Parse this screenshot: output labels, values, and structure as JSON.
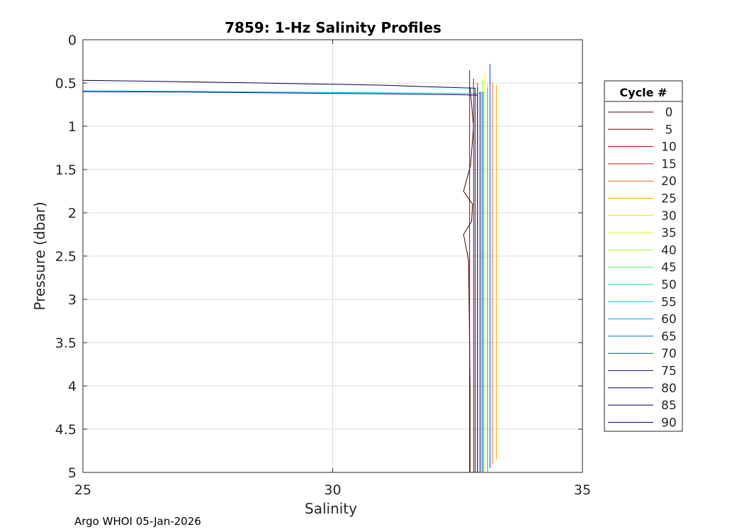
{
  "chart_data": {
    "type": "line",
    "title": "7859: 1-Hz Salinity Profiles",
    "xlabel": "Salinity",
    "ylabel": "Pressure (dbar)",
    "xlim": [
      25,
      35
    ],
    "ylim": [
      0,
      5
    ],
    "y_reversed": true,
    "grid": true,
    "x_ticks": [
      25,
      30,
      35
    ],
    "y_ticks": [
      0,
      0.5,
      1,
      1.5,
      2,
      2.5,
      3,
      3.5,
      4,
      4.5,
      5
    ],
    "legend_title": "Cycle #",
    "legend_position": "outside-right",
    "series": [
      {
        "name": "0",
        "color": "#4d0000",
        "x": [
          32.75,
          32.82,
          32.76,
          32.62,
          32.8,
          32.78,
          32.62,
          32.72,
          32.75,
          32.75
        ],
        "y": [
          0.55,
          1.0,
          1.45,
          1.75,
          1.9,
          2.1,
          2.25,
          2.55,
          4.0,
          5.0
        ]
      },
      {
        "name": "5",
        "color": "#800000",
        "x": [
          32.74,
          32.74,
          32.74
        ],
        "y": [
          0.35,
          2.0,
          5.0
        ]
      },
      {
        "name": "10",
        "color": "#b30000",
        "x": [
          32.82,
          32.82,
          32.82
        ],
        "y": [
          0.45,
          2.5,
          5.0
        ]
      },
      {
        "name": "15",
        "color": "#e61a00",
        "x": [
          32.9,
          32.9,
          32.9
        ],
        "y": [
          0.5,
          2.5,
          5.0
        ]
      },
      {
        "name": "20",
        "color": "#ff6600",
        "x": [
          33.2,
          33.2,
          33.2
        ],
        "y": [
          0.5,
          2.5,
          4.9
        ]
      },
      {
        "name": "25",
        "color": "#ffa500",
        "x": [
          33.28,
          33.28,
          33.28
        ],
        "y": [
          0.52,
          2.5,
          4.85
        ]
      },
      {
        "name": "30",
        "color": "#ffd000",
        "x": [
          33.1,
          33.1,
          33.1
        ],
        "y": [
          0.5,
          2.5,
          5.0
        ]
      },
      {
        "name": "35",
        "color": "#e6ff00",
        "x": [
          33.05,
          33.05,
          33.05
        ],
        "y": [
          0.38,
          2.5,
          5.0
        ]
      },
      {
        "name": "40",
        "color": "#99ff33",
        "x": [
          33.0,
          33.0,
          33.0
        ],
        "y": [
          0.45,
          2.5,
          5.0
        ]
      },
      {
        "name": "45",
        "color": "#33ff66",
        "x": [
          32.98,
          32.98,
          32.98
        ],
        "y": [
          0.6,
          2.5,
          5.0
        ]
      },
      {
        "name": "50",
        "color": "#00e6a0",
        "x": [
          33.02,
          33.02,
          33.02
        ],
        "y": [
          0.6,
          2.5,
          5.0
        ]
      },
      {
        "name": "55",
        "color": "#00ccd9",
        "x": [
          25.0,
          28.0,
          32.5,
          32.95,
          32.95
        ],
        "y": [
          0.59,
          0.6,
          0.62,
          0.62,
          5.0
        ]
      },
      {
        "name": "60",
        "color": "#00a6e6",
        "x": [
          33.1,
          33.1,
          33.1
        ],
        "y": [
          0.55,
          2.5,
          5.0
        ]
      },
      {
        "name": "65",
        "color": "#0073cc",
        "x": [
          33.0,
          33.0,
          33.0
        ],
        "y": [
          0.6,
          2.5,
          5.0
        ]
      },
      {
        "name": "70",
        "color": "#0040ff",
        "x": [
          33.15,
          33.15,
          33.15
        ],
        "y": [
          0.28,
          2.5,
          4.95
        ]
      },
      {
        "name": "75",
        "color": "#1a1aa6",
        "x": [
          32.9,
          32.9,
          32.9
        ],
        "y": [
          0.55,
          2.5,
          5.0
        ]
      },
      {
        "name": "80",
        "color": "#000080",
        "x": [
          25.0,
          27.0,
          29.0,
          31.0,
          32.5,
          32.9,
          32.9
        ],
        "y": [
          0.6,
          0.605,
          0.615,
          0.625,
          0.635,
          0.64,
          5.0
        ]
      },
      {
        "name": "85",
        "color": "#00004d",
        "x": [
          25.0,
          27.0,
          29.0,
          31.0,
          32.0,
          32.85,
          32.85
        ],
        "y": [
          0.47,
          0.485,
          0.505,
          0.525,
          0.545,
          0.56,
          5.0
        ]
      },
      {
        "name": "90",
        "color": "#000099",
        "x": [
          32.95,
          32.95,
          32.95
        ],
        "y": [
          0.6,
          2.5,
          5.0
        ]
      }
    ]
  },
  "footer": "Argo WHOI 05-Jan-2026"
}
